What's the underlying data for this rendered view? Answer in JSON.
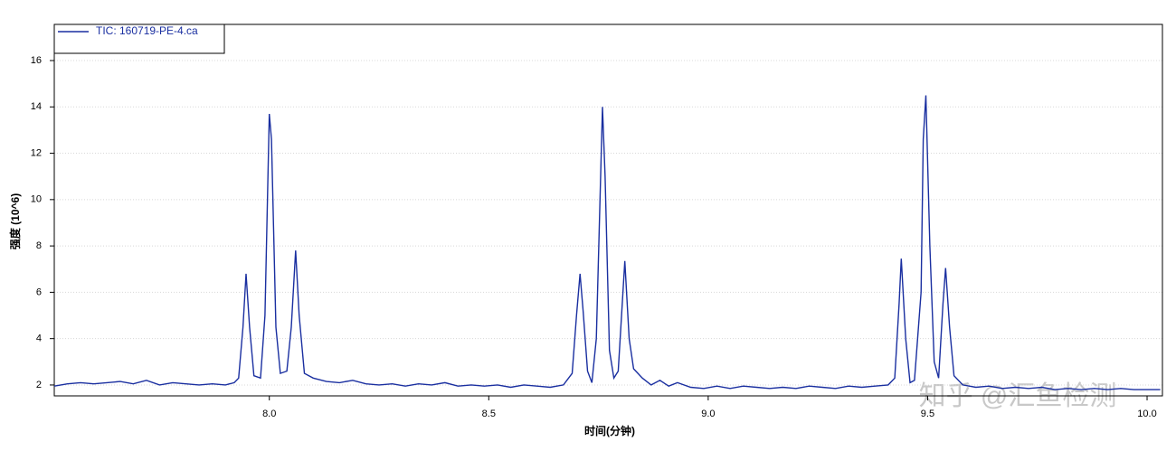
{
  "chart_data": {
    "type": "line",
    "x_label": "时间(分钟)",
    "y_label": "强度 (10^6)",
    "watermark": "知乎 @汇鱼检测",
    "xlim": [
      7.51,
      10.035
    ],
    "ylim": [
      1.53,
      17.56
    ],
    "xticks": [
      {
        "value": 8,
        "label": "8.0"
      },
      {
        "value": 8.5,
        "label": "8.5"
      },
      {
        "value": 9,
        "label": "9.0"
      },
      {
        "value": 9.5,
        "label": "9.5"
      },
      {
        "value": 10,
        "label": "10.0"
      }
    ],
    "yticks": [
      2,
      4,
      6,
      8,
      10,
      12,
      14,
      16
    ],
    "grid": true,
    "legend": "top-left",
    "x": [
      7.51,
      7.54,
      7.57,
      7.6,
      7.63,
      7.66,
      7.69,
      7.72,
      7.75,
      7.78,
      7.81,
      7.84,
      7.87,
      7.9,
      7.92,
      7.93,
      7.94,
      7.947,
      7.955,
      7.965,
      7.98,
      7.99,
      8.0,
      8.005,
      8.015,
      8.025,
      8.04,
      8.05,
      8.06,
      8.068,
      8.08,
      8.1,
      8.13,
      8.16,
      8.19,
      8.22,
      8.25,
      8.28,
      8.31,
      8.34,
      8.37,
      8.4,
      8.43,
      8.46,
      8.49,
      8.52,
      8.55,
      8.58,
      8.61,
      8.64,
      8.67,
      8.69,
      8.7,
      8.708,
      8.715,
      8.725,
      8.735,
      8.745,
      8.759,
      8.765,
      8.775,
      8.785,
      8.795,
      8.81,
      8.82,
      8.83,
      8.85,
      8.87,
      8.89,
      8.91,
      8.93,
      8.96,
      8.99,
      9.02,
      9.05,
      9.08,
      9.11,
      9.14,
      9.17,
      9.2,
      9.23,
      9.26,
      9.29,
      9.32,
      9.35,
      9.38,
      9.41,
      9.425,
      9.435,
      9.44,
      9.45,
      9.46,
      9.47,
      9.485,
      9.49,
      9.496,
      9.505,
      9.515,
      9.525,
      9.535,
      9.541,
      9.55,
      9.56,
      9.58,
      9.61,
      9.64,
      9.67,
      9.7,
      9.73,
      9.76,
      9.79,
      9.82,
      9.85,
      9.88,
      9.91,
      9.94,
      9.97,
      10.0,
      10.03
    ],
    "series": [
      {
        "name": "TIC: 160719-PE-4.ca",
        "color": "#1a2fa0",
        "values": [
          1.95,
          2.05,
          2.1,
          2.05,
          2.1,
          2.15,
          2.05,
          2.2,
          2.0,
          2.1,
          2.05,
          2.0,
          2.05,
          2.0,
          2.1,
          2.3,
          4.5,
          6.8,
          4.5,
          2.4,
          2.3,
          5.0,
          13.7,
          12.6,
          4.5,
          2.5,
          2.6,
          4.5,
          7.8,
          5.0,
          2.5,
          2.3,
          2.15,
          2.1,
          2.2,
          2.05,
          2.0,
          2.05,
          1.95,
          2.05,
          2.0,
          2.1,
          1.95,
          2.0,
          1.95,
          2.0,
          1.9,
          2.0,
          1.95,
          1.9,
          2.0,
          2.5,
          5.0,
          6.8,
          5.2,
          2.6,
          2.1,
          4.0,
          14.0,
          11.0,
          3.5,
          2.3,
          2.6,
          7.35,
          4.0,
          2.7,
          2.3,
          2.0,
          2.2,
          1.95,
          2.1,
          1.9,
          1.85,
          1.95,
          1.85,
          1.95,
          1.9,
          1.85,
          1.9,
          1.85,
          1.95,
          1.9,
          1.85,
          1.95,
          1.9,
          1.95,
          2.0,
          2.3,
          5.5,
          7.45,
          4.0,
          2.1,
          2.2,
          6.0,
          12.6,
          14.5,
          8.0,
          3.0,
          2.3,
          5.5,
          7.05,
          4.5,
          2.4,
          2.0,
          1.9,
          1.95,
          1.85,
          1.9,
          1.85,
          1.9,
          1.8,
          1.85,
          1.8,
          1.85,
          1.8,
          1.85,
          1.8,
          1.8,
          1.8
        ]
      }
    ]
  }
}
